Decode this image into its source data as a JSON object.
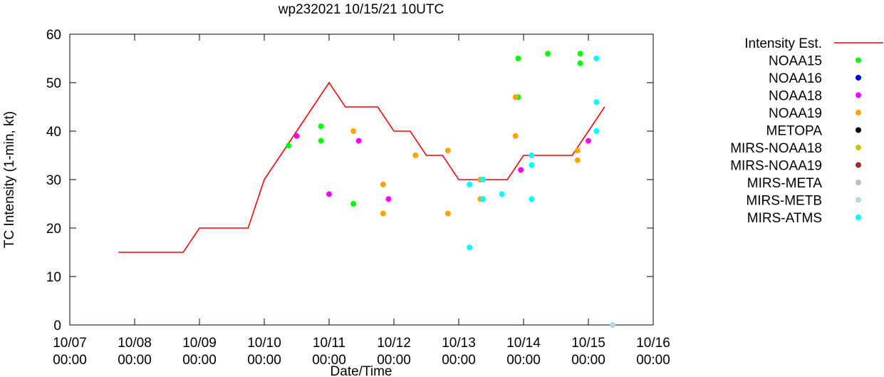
{
  "chart_data": {
    "type": "scatter",
    "title": "wp232021 10/15/21 10UTC",
    "xlabel": "Date/Time",
    "ylabel": "TC Intensity (1-min, kt)",
    "ylim": [
      0,
      60
    ],
    "xlim": [
      "10/07 00:00",
      "10/16 00:00"
    ],
    "y_ticks": [
      0,
      10,
      20,
      30,
      40,
      50,
      60
    ],
    "x_ticks": [
      {
        "date": "10/07",
        "time": "00:00"
      },
      {
        "date": "10/08",
        "time": "00:00"
      },
      {
        "date": "10/09",
        "time": "00:00"
      },
      {
        "date": "10/10",
        "time": "00:00"
      },
      {
        "date": "10/11",
        "time": "00:00"
      },
      {
        "date": "10/12",
        "time": "00:00"
      },
      {
        "date": "10/13",
        "time": "00:00"
      },
      {
        "date": "10/14",
        "time": "00:00"
      },
      {
        "date": "10/15",
        "time": "00:00"
      },
      {
        "date": "10/16",
        "time": "00:00"
      }
    ],
    "grid": false,
    "legend_position": "outside-right",
    "intensity_line": {
      "name": "Intensity Est.",
      "color": "#ff0000",
      "points": [
        [
          "10/07 18:00",
          15
        ],
        [
          "10/08 18:00",
          15
        ],
        [
          "10/09 00:00",
          20
        ],
        [
          "10/09 18:00",
          20
        ],
        [
          "10/10 00:00",
          30
        ],
        [
          "10/10 06:00",
          35
        ],
        [
          "10/11 00:00",
          50
        ],
        [
          "10/11 06:00",
          45
        ],
        [
          "10/11 18:00",
          45
        ],
        [
          "10/12 00:00",
          40
        ],
        [
          "10/12 06:00",
          40
        ],
        [
          "10/12 12:00",
          35
        ],
        [
          "10/12 18:00",
          35
        ],
        [
          "10/13 00:00",
          30
        ],
        [
          "10/13 18:00",
          30
        ],
        [
          "10/14 00:00",
          35
        ],
        [
          "10/14 18:00",
          35
        ],
        [
          "10/15 06:00",
          45
        ]
      ]
    },
    "series": [
      {
        "name": "NOAA15",
        "color": "#00ff00",
        "points": [
          [
            "10/10 09:00",
            37
          ],
          [
            "10/10 21:00",
            41
          ],
          [
            "10/10 21:00",
            38
          ],
          [
            "10/11 09:00",
            25
          ],
          [
            "10/13 22:00",
            55
          ],
          [
            "10/13 22:00",
            47
          ],
          [
            "10/14 09:00",
            56
          ],
          [
            "10/14 21:00",
            56
          ],
          [
            "10/14 21:00",
            54
          ],
          [
            "10/13 09:00",
            26
          ]
        ]
      },
      {
        "name": "NOAA16",
        "color": "#0000ff",
        "points": []
      },
      {
        "name": "NOAA18",
        "color": "#ff00ff",
        "points": [
          [
            "10/10 12:00",
            39
          ],
          [
            "10/11 00:00",
            27
          ],
          [
            "10/11 11:00",
            38
          ],
          [
            "10/11 22:00",
            26
          ],
          [
            "10/13 23:00",
            32
          ],
          [
            "10/15 00:00",
            38
          ]
        ]
      },
      {
        "name": "NOAA19",
        "color": "#ffa500",
        "points": [
          [
            "10/11 09:00",
            40
          ],
          [
            "10/11 20:00",
            29
          ],
          [
            "10/11 20:00",
            23
          ],
          [
            "10/12 08:00",
            35
          ],
          [
            "10/12 20:00",
            36
          ],
          [
            "10/12 20:00",
            23
          ],
          [
            "10/13 08:00",
            30
          ],
          [
            "10/13 08:00",
            26
          ],
          [
            "10/13 21:00",
            47
          ],
          [
            "10/13 21:00",
            39
          ],
          [
            "10/14 20:00",
            36
          ],
          [
            "10/14 20:00",
            34
          ]
        ]
      },
      {
        "name": "METOPA",
        "color": "#000000",
        "points": []
      },
      {
        "name": "MIRS-NOAA18",
        "color": "#c8c800",
        "points": []
      },
      {
        "name": "MIRS-NOAA19",
        "color": "#a52a2a",
        "points": []
      },
      {
        "name": "MIRS-META",
        "color": "#bebebe",
        "points": [
          [
            "10/15 09:00",
            0
          ]
        ]
      },
      {
        "name": "MIRS-METB",
        "color": "#add8e6",
        "points": [
          [
            "10/15 09:00",
            0
          ]
        ]
      },
      {
        "name": "MIRS-ATMS",
        "color": "#00ffff",
        "points": [
          [
            "10/13 04:00",
            29
          ],
          [
            "10/13 04:00",
            16
          ],
          [
            "10/13 09:00",
            30
          ],
          [
            "10/13 09:00",
            26
          ],
          [
            "10/13 16:00",
            27
          ],
          [
            "10/14 03:00",
            35
          ],
          [
            "10/14 03:00",
            33
          ],
          [
            "10/14 03:00",
            26
          ],
          [
            "10/15 03:00",
            55
          ],
          [
            "10/15 03:00",
            46
          ],
          [
            "10/15 03:00",
            40
          ]
        ]
      }
    ]
  }
}
